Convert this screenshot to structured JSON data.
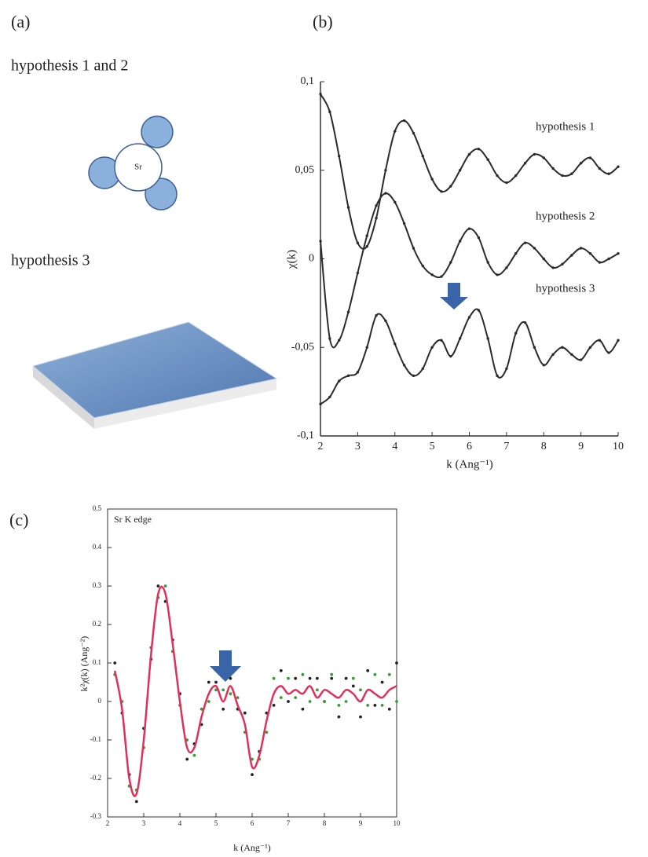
{
  "panel_a": {
    "label": "(a)",
    "top_caption": "hypothesis 1 and 2",
    "atom": "Sr",
    "bottom_caption": "hypothesis 3"
  },
  "chart_data": [
    {
      "type": "line",
      "panel": "(b)",
      "x_label": "k (Ang⁻¹)",
      "y_label": "χ(k)",
      "x": [
        2,
        2.25,
        2.5,
        2.75,
        3,
        3.25,
        3.5,
        3.75,
        4,
        4.25,
        4.5,
        4.75,
        5,
        5.25,
        5.5,
        5.75,
        6,
        6.25,
        6.5,
        6.75,
        7,
        7.25,
        7.5,
        7.75,
        8,
        8.25,
        8.5,
        8.75,
        9,
        9.25,
        9.5,
        9.75,
        10
      ],
      "series": [
        {
          "name": "hypothesis 1",
          "color": "#2b2b2b",
          "mode": "line+markers",
          "values": [
            0.093,
            0.083,
            0.058,
            0.029,
            0.009,
            0.007,
            0.023,
            0.05,
            0.072,
            0.078,
            0.071,
            0.058,
            0.045,
            0.038,
            0.041,
            0.05,
            0.059,
            0.062,
            0.056,
            0.047,
            0.043,
            0.047,
            0.054,
            0.059,
            0.057,
            0.051,
            0.047,
            0.048,
            0.054,
            0.057,
            0.051,
            0.048,
            0.052
          ]
        },
        {
          "name": "hypothesis 2",
          "color": "#2b2b2b",
          "mode": "line+markers",
          "values": [
            0.01,
            -0.045,
            -0.046,
            -0.03,
            -0.008,
            0.013,
            0.03,
            0.037,
            0.032,
            0.02,
            0.006,
            -0.004,
            -0.009,
            -0.01,
            -0.002,
            0.01,
            0.017,
            0.012,
            -0.002,
            -0.009,
            -0.005,
            0.003,
            0.009,
            0.006,
            0.0,
            -0.005,
            -0.003,
            0.002,
            0.006,
            0.003,
            -0.002,
            0.0,
            0.003
          ]
        },
        {
          "name": "hypothesis 3",
          "color": "#2b2b2b",
          "mode": "line+markers",
          "values": [
            -0.082,
            -0.078,
            -0.069,
            -0.066,
            -0.064,
            -0.05,
            -0.032,
            -0.035,
            -0.048,
            -0.06,
            -0.066,
            -0.062,
            -0.05,
            -0.046,
            -0.055,
            -0.045,
            -0.033,
            -0.029,
            -0.045,
            -0.066,
            -0.062,
            -0.042,
            -0.036,
            -0.05,
            -0.06,
            -0.054,
            -0.05,
            -0.054,
            -0.057,
            -0.05,
            -0.046,
            -0.053,
            -0.046
          ]
        }
      ],
      "xlim": [
        2,
        10
      ],
      "ylim": [
        -0.1,
        0.1
      ],
      "xticks": [
        2,
        3,
        4,
        5,
        6,
        7,
        8,
        9,
        10
      ],
      "yticks": [
        {
          "value": 0.1,
          "label": "0,1"
        },
        {
          "value": 0.05,
          "label": "0,05"
        },
        0,
        {
          "value": -0.05,
          "label": "-0,05"
        },
        {
          "value": -0.1,
          "label": "-0,1"
        }
      ],
      "frame": false
    },
    {
      "type": "line",
      "panel": "(c)",
      "title": "Sr K edge",
      "x_label": "k (Ang⁻¹)",
      "y_label": "k²χ(k)  (Ang⁻²)",
      "x": [
        2.2,
        2.4,
        2.6,
        2.8,
        3.0,
        3.2,
        3.4,
        3.6,
        3.8,
        4.0,
        4.2,
        4.4,
        4.6,
        4.8,
        5.0,
        5.2,
        5.4,
        5.6,
        5.8,
        6.0,
        6.2,
        6.4,
        6.6,
        6.8,
        7.0,
        7.2,
        7.4,
        7.6,
        7.8,
        8.0,
        8.2,
        8.4,
        8.6,
        8.8,
        9.0,
        9.2,
        9.4,
        9.6,
        9.8,
        10.0
      ],
      "series": [
        {
          "color": "#222222",
          "mode": "markers",
          "values": [
            0.1,
            -0.03,
            -0.19,
            -0.26,
            -0.07,
            0.11,
            0.3,
            0.26,
            0.16,
            0.02,
            -0.15,
            -0.11,
            -0.06,
            0.05,
            0.05,
            -0.02,
            0.06,
            -0.02,
            -0.03,
            -0.19,
            -0.13,
            -0.03,
            -0.01,
            0.08,
            0.0,
            0.06,
            -0.02,
            0.06,
            0.06,
            0.0,
            0.06,
            -0.04,
            0.06,
            0.04,
            -0.04,
            0.08,
            -0.01,
            0.05,
            -0.02,
            0.1
          ]
        },
        {
          "color": "#3a9a3a",
          "mode": "markers",
          "values": [
            0.07,
            0.0,
            -0.22,
            -0.23,
            -0.12,
            0.14,
            0.27,
            0.3,
            0.13,
            -0.01,
            -0.1,
            -0.14,
            -0.02,
            0.0,
            0.03,
            0.03,
            0.02,
            0.01,
            -0.08,
            -0.15,
            -0.15,
            -0.08,
            0.06,
            0.01,
            0.06,
            0.01,
            0.07,
            0.0,
            0.03,
            0.0,
            0.07,
            -0.01,
            0.0,
            0.06,
            0.03,
            -0.01,
            0.07,
            -0.01,
            0.07,
            0.0
          ]
        },
        {
          "color": "#e0305a",
          "mode": "line",
          "values": [
            0.08,
            -0.02,
            -0.2,
            -0.24,
            -0.1,
            0.12,
            0.28,
            0.28,
            0.15,
            0.0,
            -0.12,
            -0.12,
            -0.04,
            0.02,
            0.04,
            0.0,
            0.04,
            -0.01,
            -0.06,
            -0.17,
            -0.14,
            -0.05,
            0.02,
            0.04,
            0.02,
            0.03,
            0.02,
            0.04,
            0.01,
            0.03,
            0.02,
            0.01,
            0.03,
            0.02,
            0.0,
            0.03,
            0.02,
            0.01,
            0.03,
            0.04
          ]
        }
      ],
      "xlim": [
        2,
        10
      ],
      "ylim": [
        -0.3,
        0.5
      ],
      "xticks": [
        2,
        3,
        4,
        5,
        6,
        7,
        8,
        9,
        10
      ],
      "yticks": [
        0.5,
        0.4,
        0.3,
        0.2,
        0.1,
        0,
        -0.1,
        -0.2,
        -0.3
      ],
      "frame": true
    }
  ]
}
